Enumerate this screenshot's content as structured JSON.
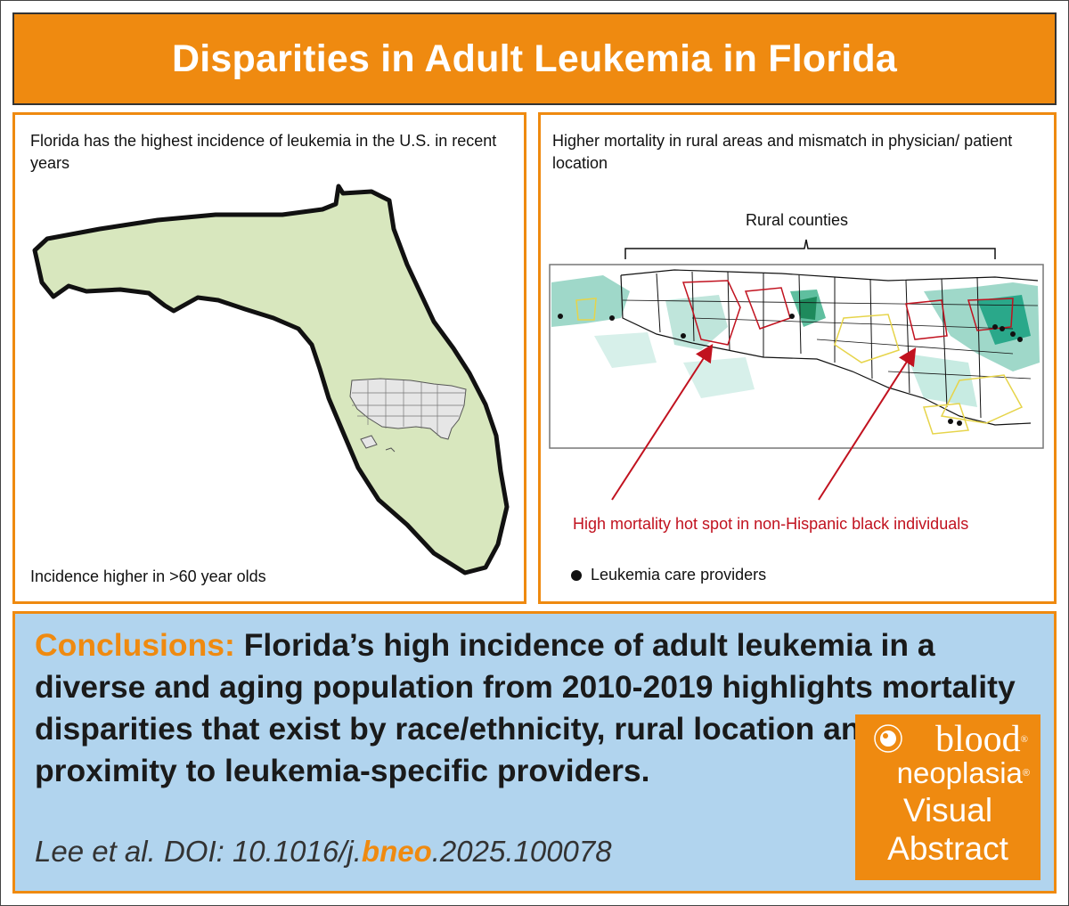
{
  "title": "Disparities in Adult Leukemia in Florida",
  "left_panel": {
    "heading": "Florida has the highest incidence of leukemia in the U.S. in recent years",
    "footnote": "Incidence higher in >60 year olds"
  },
  "right_panel": {
    "heading": "Higher mortality in rural areas and mismatch in physician/ patient location",
    "bracket_label": "Rural counties",
    "hotspot_label": "High mortality hot spot in non-Hispanic black individuals",
    "legend_label": "Leukemia care providers"
  },
  "conclusions": {
    "lead": "Conclusions:",
    "text": "Florida’s high incidence of adult leukemia in a diverse and aging population from 2010-2019 highlights mortality disparities that exist by race/ethnicity, rural location and proximity to leukemia-specific providers."
  },
  "citation": {
    "prefix": "Lee et al. DOI: 10.1016/j.",
    "accent": "bneo",
    "suffix": ".2025.100078"
  },
  "logo": {
    "line1": "blood",
    "line2": "neoplasia",
    "line3": "Visual",
    "line4": "Abstract",
    "registered": "®"
  },
  "colors": {
    "accent_orange": "#ef8a10",
    "panel_blue": "#b1d4ee",
    "florida_fill": "#d8e7be",
    "hotspot_red": "#c1121f",
    "map_teal": "#2aa88a",
    "county_yellow": "#e6d44a"
  },
  "icons": [
    "florida-map",
    "us-map-inset",
    "county-map",
    "red-arrow",
    "provider-dot",
    "society-seal"
  ]
}
